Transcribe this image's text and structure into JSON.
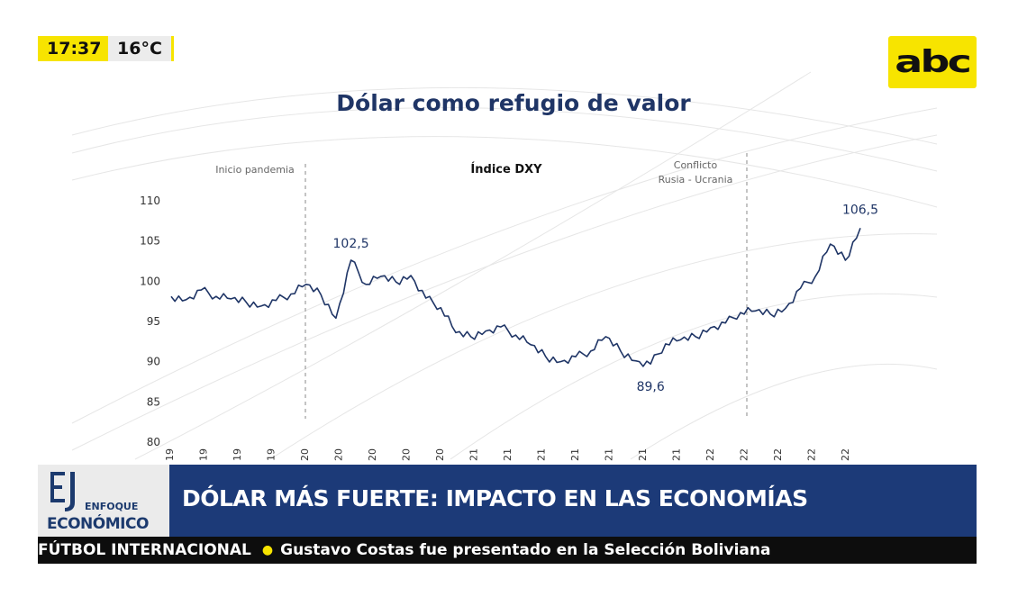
{
  "clock": {
    "time": "17:37",
    "temperature": "16°C"
  },
  "channel_logo": "abc",
  "chart_data": {
    "type": "line",
    "title": "Dólar como refugio de valor",
    "series": [
      {
        "name": "Índice DXY",
        "x": [
          "2019-01",
          "2019-02",
          "2019-03",
          "2019-04",
          "2019-05",
          "2019-06",
          "2019-07",
          "2019-08",
          "2019-09",
          "2019-10",
          "2019-11",
          "2019-12",
          "2020-01",
          "2020-02",
          "2020-03a",
          "2020-03b",
          "2020-03c",
          "2020-04",
          "2020-05",
          "2020-06",
          "2020-07",
          "2020-08",
          "2020-09",
          "2020-10",
          "2020-11",
          "2020-12",
          "2021-01",
          "2021-02",
          "2021-03",
          "2021-04",
          "2021-05",
          "2021-06",
          "2021-07",
          "2021-08",
          "2021-09",
          "2021-10",
          "2021-11",
          "2021-12",
          "2022-01",
          "2022-02",
          "2022-03",
          "2022-04",
          "2022-05",
          "2022-06",
          "2022-07",
          "2022-08",
          "2022-09"
        ],
        "values": [
          98.0,
          97.6,
          98.8,
          98.0,
          97.7,
          97.3,
          96.8,
          97.5,
          98.3,
          99.5,
          98.2,
          95.3,
          102.5,
          99.5,
          100.5,
          99.8,
          100.6,
          97.8,
          96.6,
          93.5,
          93.0,
          93.7,
          94.2,
          93.2,
          92.0,
          90.5,
          89.9,
          90.5,
          91.2,
          93.0,
          91.2,
          90.0,
          89.6,
          92.1,
          92.6,
          93.0,
          94.1,
          94.7,
          96.0,
          96.2,
          95.8,
          96.5,
          99.0,
          100.5,
          104.5,
          102.5,
          106.5
        ]
      }
    ],
    "series_label": "Índice DXY",
    "annotations": [
      {
        "text": "Inicio pandemia"
      },
      {
        "text": "Conflicto Rusia - Ucrania"
      },
      {
        "text": "102,5"
      },
      {
        "text": "89,6"
      },
      {
        "text": "106,5"
      }
    ],
    "y_ticks": [
      "110",
      "105",
      "100",
      "95",
      "90",
      "85",
      "80"
    ],
    "ylim": [
      80,
      110
    ],
    "x_tick_labels": [
      "19",
      "19",
      "19",
      "19",
      "20",
      "20",
      "20",
      "20",
      "20",
      "21",
      "21",
      "21",
      "21",
      "21",
      "21",
      "21",
      "22",
      "22",
      "22",
      "22",
      "22"
    ],
    "grid": false,
    "legend": "none"
  },
  "program": {
    "line1": "ENFOQUE",
    "line2": "ECONÓMICO"
  },
  "headline": "DÓLAR MÁS FUERTE: IMPACTO EN LAS ECONOMÍAS",
  "ticker": {
    "category": "FÚTBOL INTERNACIONAL",
    "story": "Gustavo Costas fue presentado en la Selección Boliviana"
  },
  "colors": {
    "brand_yellow": "#f7e400",
    "navy": "#1c3a78",
    "line": "#1f3566"
  }
}
